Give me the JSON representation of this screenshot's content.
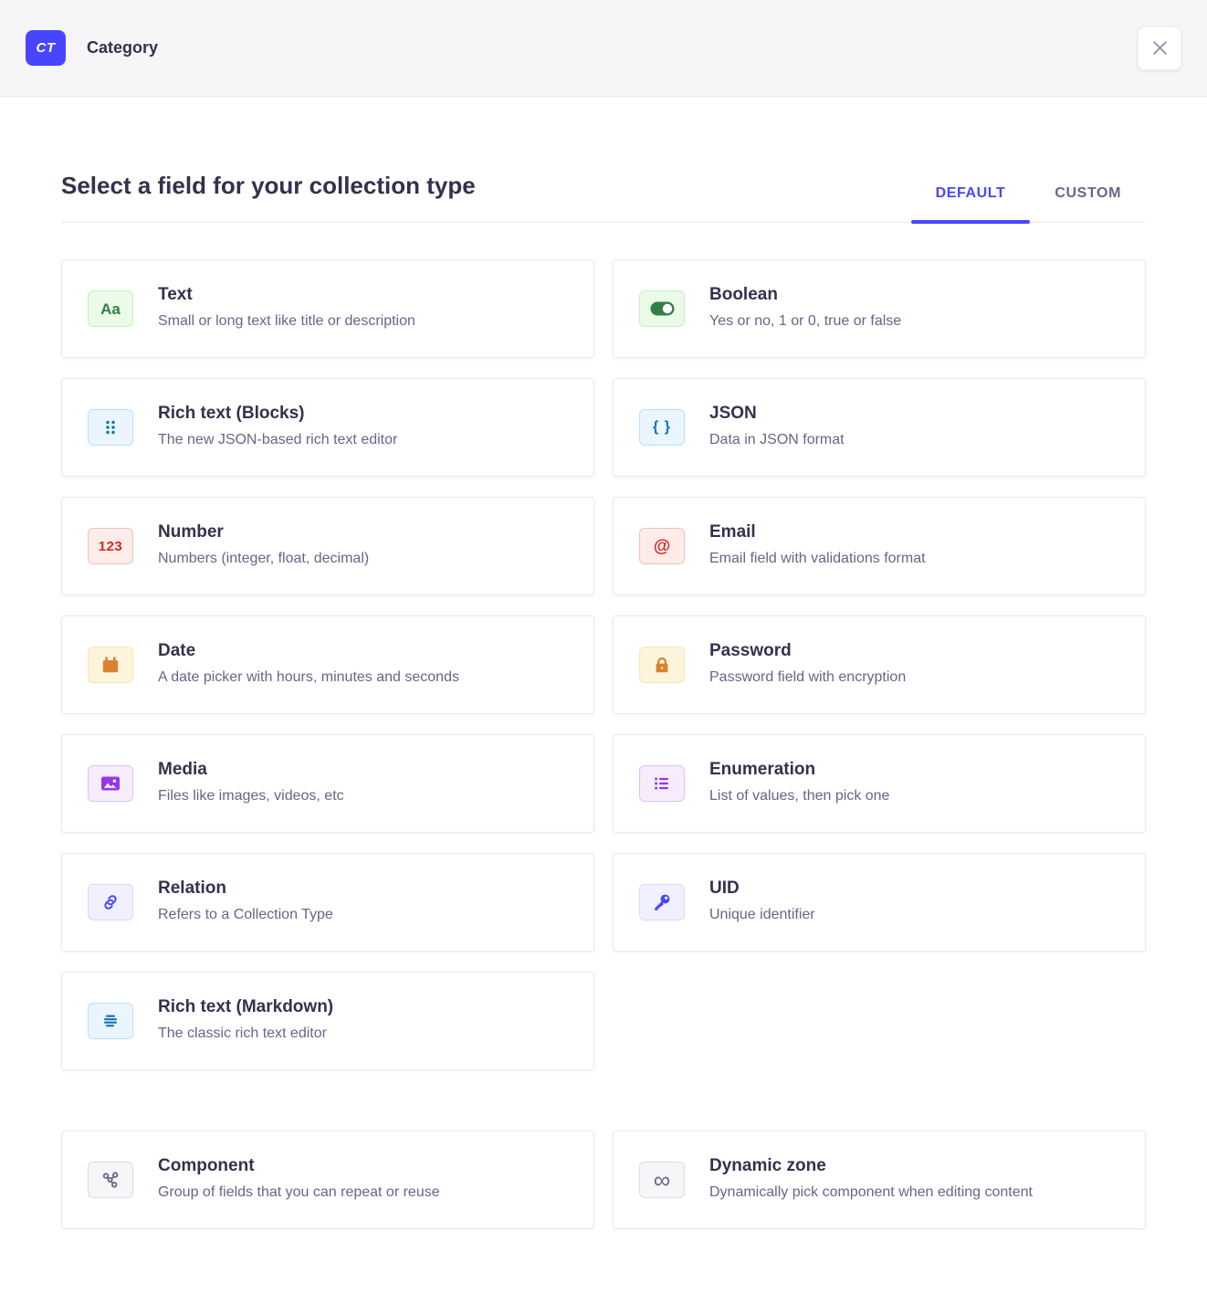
{
  "header": {
    "badge_label": "CT",
    "title": "Category"
  },
  "modal": {
    "title": "Select a field for your collection type",
    "tabs": [
      {
        "label": "DEFAULT",
        "active": true
      },
      {
        "label": "CUSTOM",
        "active": false
      }
    ]
  },
  "accent_color": "#4945ff",
  "palettes": {
    "green": {
      "bg": "#eafbe7",
      "border": "#c6f0c2",
      "fg": "#328048"
    },
    "blue": {
      "bg": "#eaf5ff",
      "border": "#b8e1ff",
      "fg": "#0c75af"
    },
    "red": {
      "bg": "#fcecea",
      "border": "#f5c0b8",
      "fg": "#d02b20"
    },
    "amber": {
      "bg": "#fdf4dc",
      "border": "#fae7b9",
      "fg": "#d9822f"
    },
    "purple": {
      "bg": "#f6ecfc",
      "border": "#e0c1f4",
      "fg": "#9736e8"
    },
    "indigo": {
      "bg": "#f0f0ff",
      "border": "#d9d8ff",
      "fg": "#4945ff"
    },
    "gray": {
      "bg": "#f6f6f9",
      "border": "#dcdce4",
      "fg": "#666687"
    }
  },
  "sections": [
    {
      "fields": [
        {
          "key": "text",
          "title": "Text",
          "description": "Small or long text like title or description",
          "icon": "letters-icon",
          "glyph": "Aa",
          "palette": "green"
        },
        {
          "key": "boolean",
          "title": "Boolean",
          "description": "Yes or no, 1 or 0, true or false",
          "icon": "toggle-icon",
          "palette": "green"
        },
        {
          "key": "rich-text-blocks",
          "title": "Rich text (Blocks)",
          "description": "The new JSON-based rich text editor",
          "icon": "drag-dots-icon",
          "palette": "blue"
        },
        {
          "key": "json",
          "title": "JSON",
          "description": "Data in JSON format",
          "icon": "braces-icon",
          "glyph": "{ }",
          "palette": "blue"
        },
        {
          "key": "number",
          "title": "Number",
          "description": "Numbers (integer, float, decimal)",
          "icon": "digits-icon",
          "glyph": "123",
          "palette": "red"
        },
        {
          "key": "email",
          "title": "Email",
          "description": "Email field with validations format",
          "icon": "at-icon",
          "glyph": "@",
          "palette": "red"
        },
        {
          "key": "date",
          "title": "Date",
          "description": "A date picker with hours, minutes and seconds",
          "icon": "calendar-icon",
          "palette": "amber"
        },
        {
          "key": "password",
          "title": "Password",
          "description": "Password field with encryption",
          "icon": "lock-icon",
          "palette": "amber"
        },
        {
          "key": "media",
          "title": "Media",
          "description": "Files like images, videos, etc",
          "icon": "picture-icon",
          "palette": "purple"
        },
        {
          "key": "enumeration",
          "title": "Enumeration",
          "description": "List of values, then pick one",
          "icon": "bullet-list-icon",
          "palette": "purple"
        },
        {
          "key": "relation",
          "title": "Relation",
          "description": "Refers to a Collection Type",
          "icon": "link-icon",
          "palette": "indigo"
        },
        {
          "key": "uid",
          "title": "UID",
          "description": "Unique identifier",
          "icon": "key-icon",
          "palette": "indigo"
        },
        {
          "key": "rich-text-markdown",
          "title": "Rich text (Markdown)",
          "description": "The classic rich text editor",
          "icon": "align-lines-icon",
          "palette": "blue"
        }
      ]
    },
    {
      "fields": [
        {
          "key": "component",
          "title": "Component",
          "description": "Group of fields that you can repeat or reuse",
          "icon": "nodes-icon",
          "palette": "gray"
        },
        {
          "key": "dynamic-zone",
          "title": "Dynamic zone",
          "description": "Dynamically pick component when editing content",
          "icon": "infinity-icon",
          "glyph": "∞",
          "palette": "gray"
        }
      ]
    }
  ]
}
